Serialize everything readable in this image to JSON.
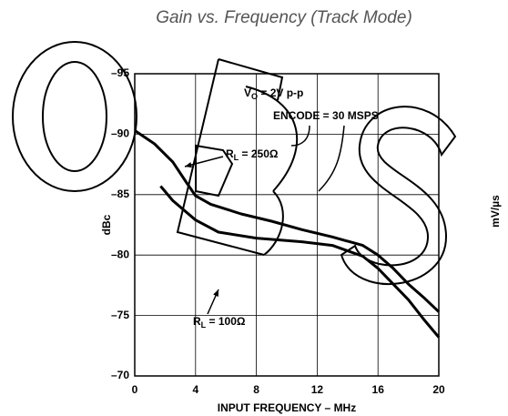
{
  "chart_data": {
    "type": "line",
    "title": "Gain vs. Frequency (Track Mode)",
    "x_label": "INPUT FREQUENCY – MHz",
    "y_label": "dBc",
    "xlim": [
      0,
      20
    ],
    "xticks": [
      0,
      4,
      8,
      12,
      16,
      20
    ],
    "ylim": [
      -70,
      -95
    ],
    "yticks": [
      {
        "value": -95,
        "label": "–95"
      },
      {
        "value": -90,
        "label": "–90"
      },
      {
        "value": -85,
        "label": "–85"
      },
      {
        "value": -80,
        "label": "–80"
      },
      {
        "value": -75,
        "label": "–75"
      },
      {
        "value": -70,
        "label": "–70"
      }
    ],
    "grid": true,
    "series": [
      {
        "name": "RL = 250Ω",
        "color": "#000000",
        "x": [
          0,
          1.3,
          2.5,
          3.4,
          4,
          5,
          7,
          9,
          11,
          13,
          15,
          16,
          17,
          18,
          19,
          20
        ],
        "values": [
          -90.3,
          -89.2,
          -87.7,
          -86.0,
          -84.9,
          -84.2,
          -83.4,
          -82.8,
          -82.1,
          -81.5,
          -80.8,
          -80.0,
          -78.9,
          -77.6,
          -76.5,
          -75.3
        ]
      },
      {
        "name": "RL = 100Ω",
        "color": "#000000",
        "x": [
          1.7,
          2.5,
          4,
          5.5,
          8,
          11,
          13,
          15,
          16,
          17,
          18,
          19,
          20
        ],
        "values": [
          -85.7,
          -84.5,
          -82.9,
          -81.9,
          -81.4,
          -81.1,
          -80.8,
          -79.9,
          -78.9,
          -77.6,
          -76.3,
          -74.7,
          -73.2
        ]
      }
    ],
    "annotations": [
      {
        "main": "V",
        "sub": "O",
        "rest": " = 2V p-p"
      },
      {
        "main": "ENCODE = 30 MSPS"
      },
      {
        "main": "R",
        "sub": "L",
        "rest": " = 250Ω"
      },
      {
        "main": "R",
        "sub": "L",
        "rest": " = 100Ω"
      },
      {
        "main": "mV/µs"
      }
    ]
  }
}
